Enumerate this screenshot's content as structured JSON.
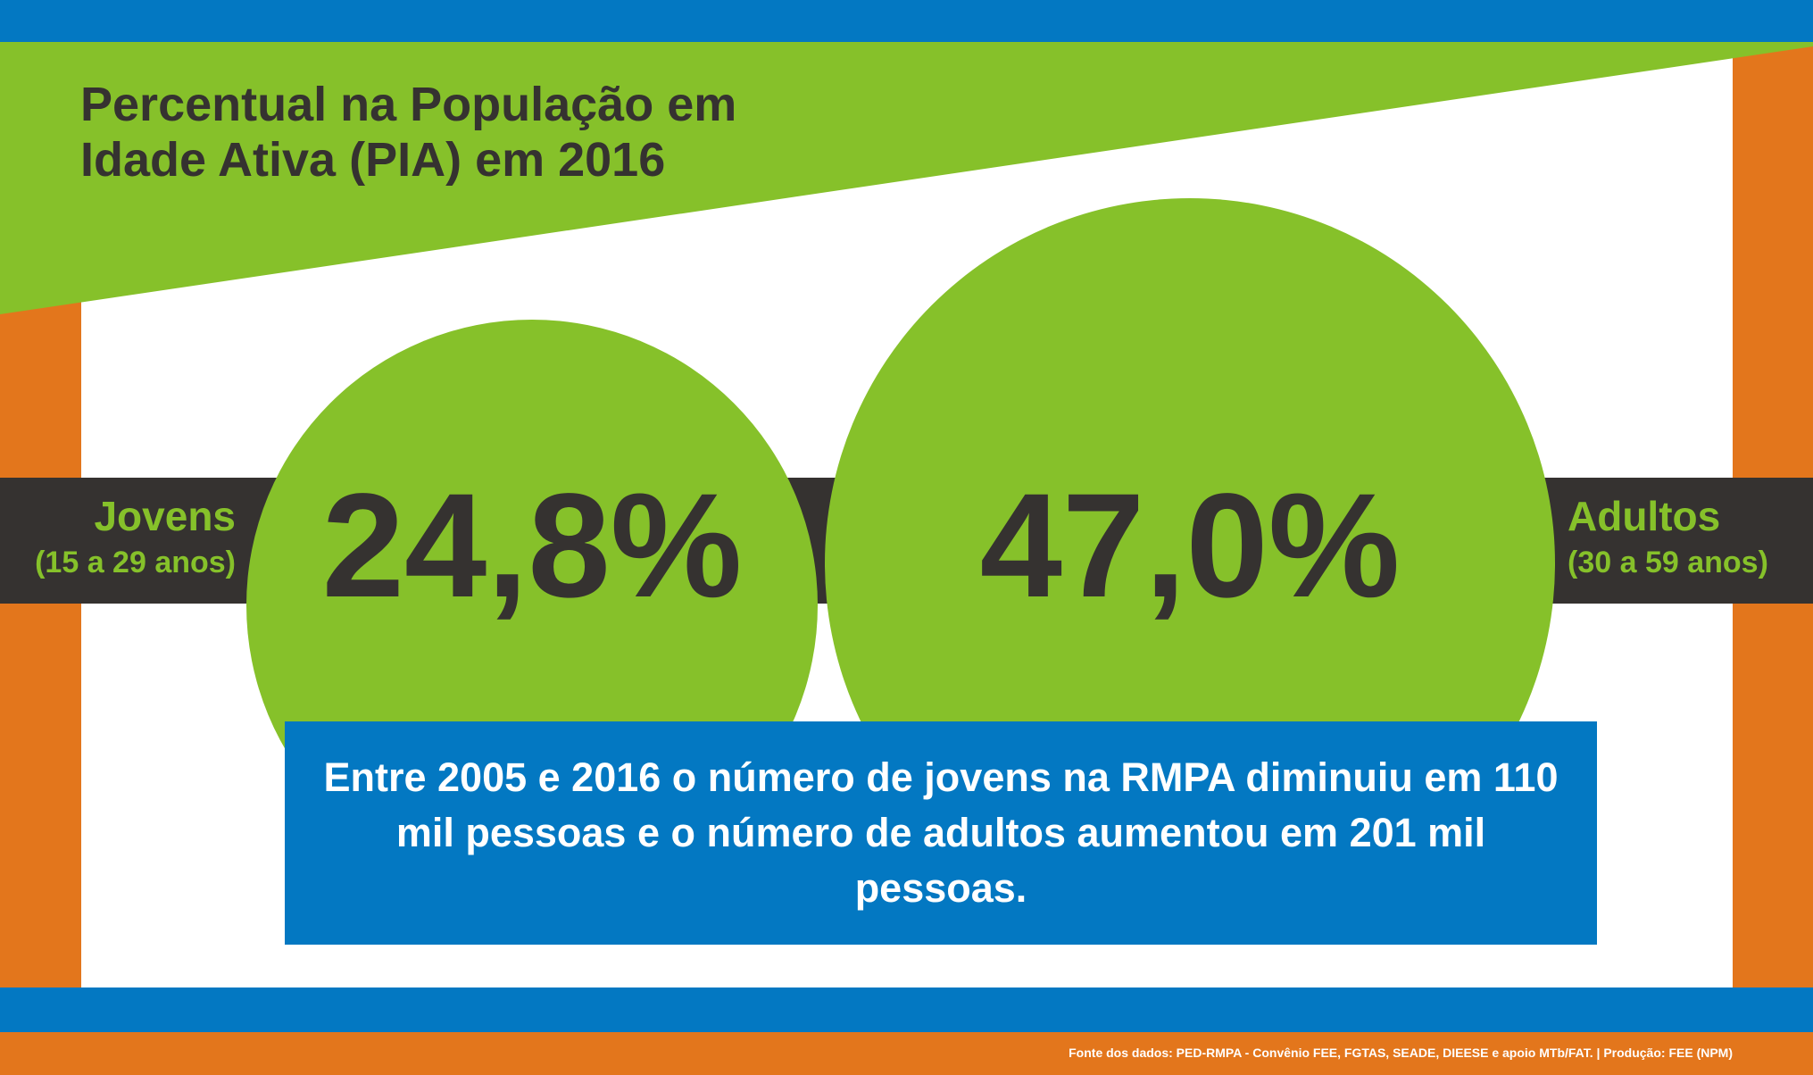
{
  "colors": {
    "blue": "#0378c2",
    "green": "#86c12a",
    "orange": "#e3761c",
    "dark": "#353230",
    "white": "#ffffff"
  },
  "title": {
    "line1": "Percentual na População em",
    "line2": "Idade Ativa (PIA) em 2016"
  },
  "groups": [
    {
      "name": "Jovens",
      "age_range": "(15 a 29 anos)",
      "value": "24,8%"
    },
    {
      "name": "Adultos",
      "age_range": "(30 a 59 anos)",
      "value": "47,0%"
    }
  ],
  "note": "Entre 2005 e 2016 o número de jovens na RMPA diminuiu em 110 mil pessoas e o número de adultos aumentou em 201 mil pessoas.",
  "source": "Fonte dos dados: PED-RMPA - Convênio FEE, FGTAS, SEADE, DIEESE e apoio MTb/FAT. | Produção: FEE (NPM)"
}
